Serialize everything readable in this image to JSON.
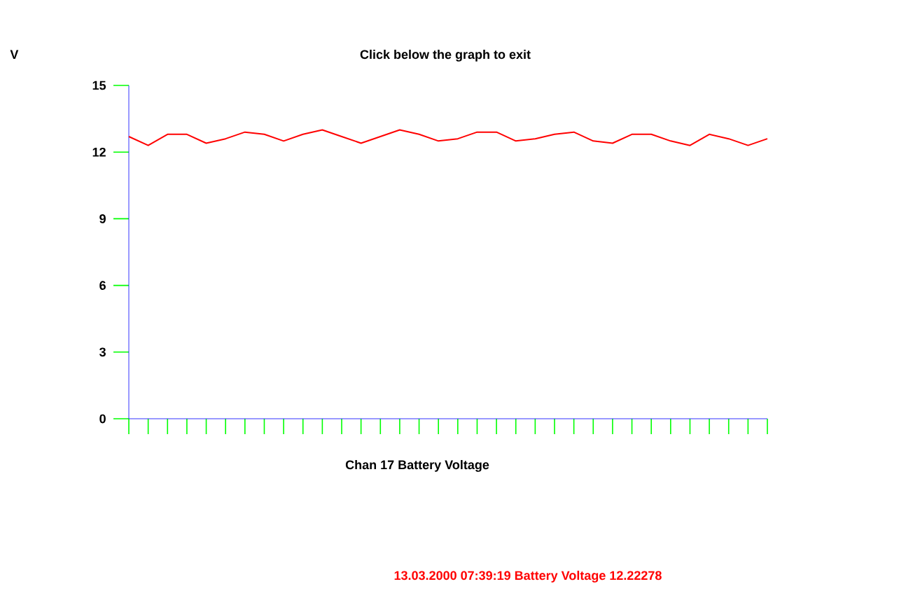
{
  "chart_data": {
    "type": "line",
    "title": "Click below the graph to exit",
    "xlabel": "Chan 17 Battery Voltage",
    "annotations": [
      "13.03.2000 07:39:19  Battery Voltage  12.22278",
      "V"
    ],
    "categories": [
      null,
      null,
      null,
      null,
      null,
      null,
      null,
      null,
      null,
      null,
      null,
      null,
      null,
      null,
      null,
      null,
      null,
      null,
      null,
      null,
      null,
      null,
      null,
      null,
      null,
      null,
      null,
      null,
      null,
      null,
      null,
      null,
      null,
      null
    ],
    "series": [
      {
        "color": "#ff0000",
        "values": [
          12.7,
          12.3,
          12.8,
          12.8,
          12.4,
          12.6,
          12.9,
          12.8,
          12.5,
          12.8,
          13.0,
          12.7,
          12.4,
          12.7,
          13.0,
          12.8,
          12.5,
          12.6,
          12.9,
          12.9,
          12.5,
          12.6,
          12.8,
          12.9,
          12.5,
          12.4,
          12.8,
          12.8,
          12.5,
          12.3,
          12.8,
          12.6,
          12.3,
          12.6
        ]
      }
    ],
    "ylim": [
      0,
      15
    ],
    "yticks": [
      0,
      3,
      6,
      9,
      12,
      15
    ]
  }
}
